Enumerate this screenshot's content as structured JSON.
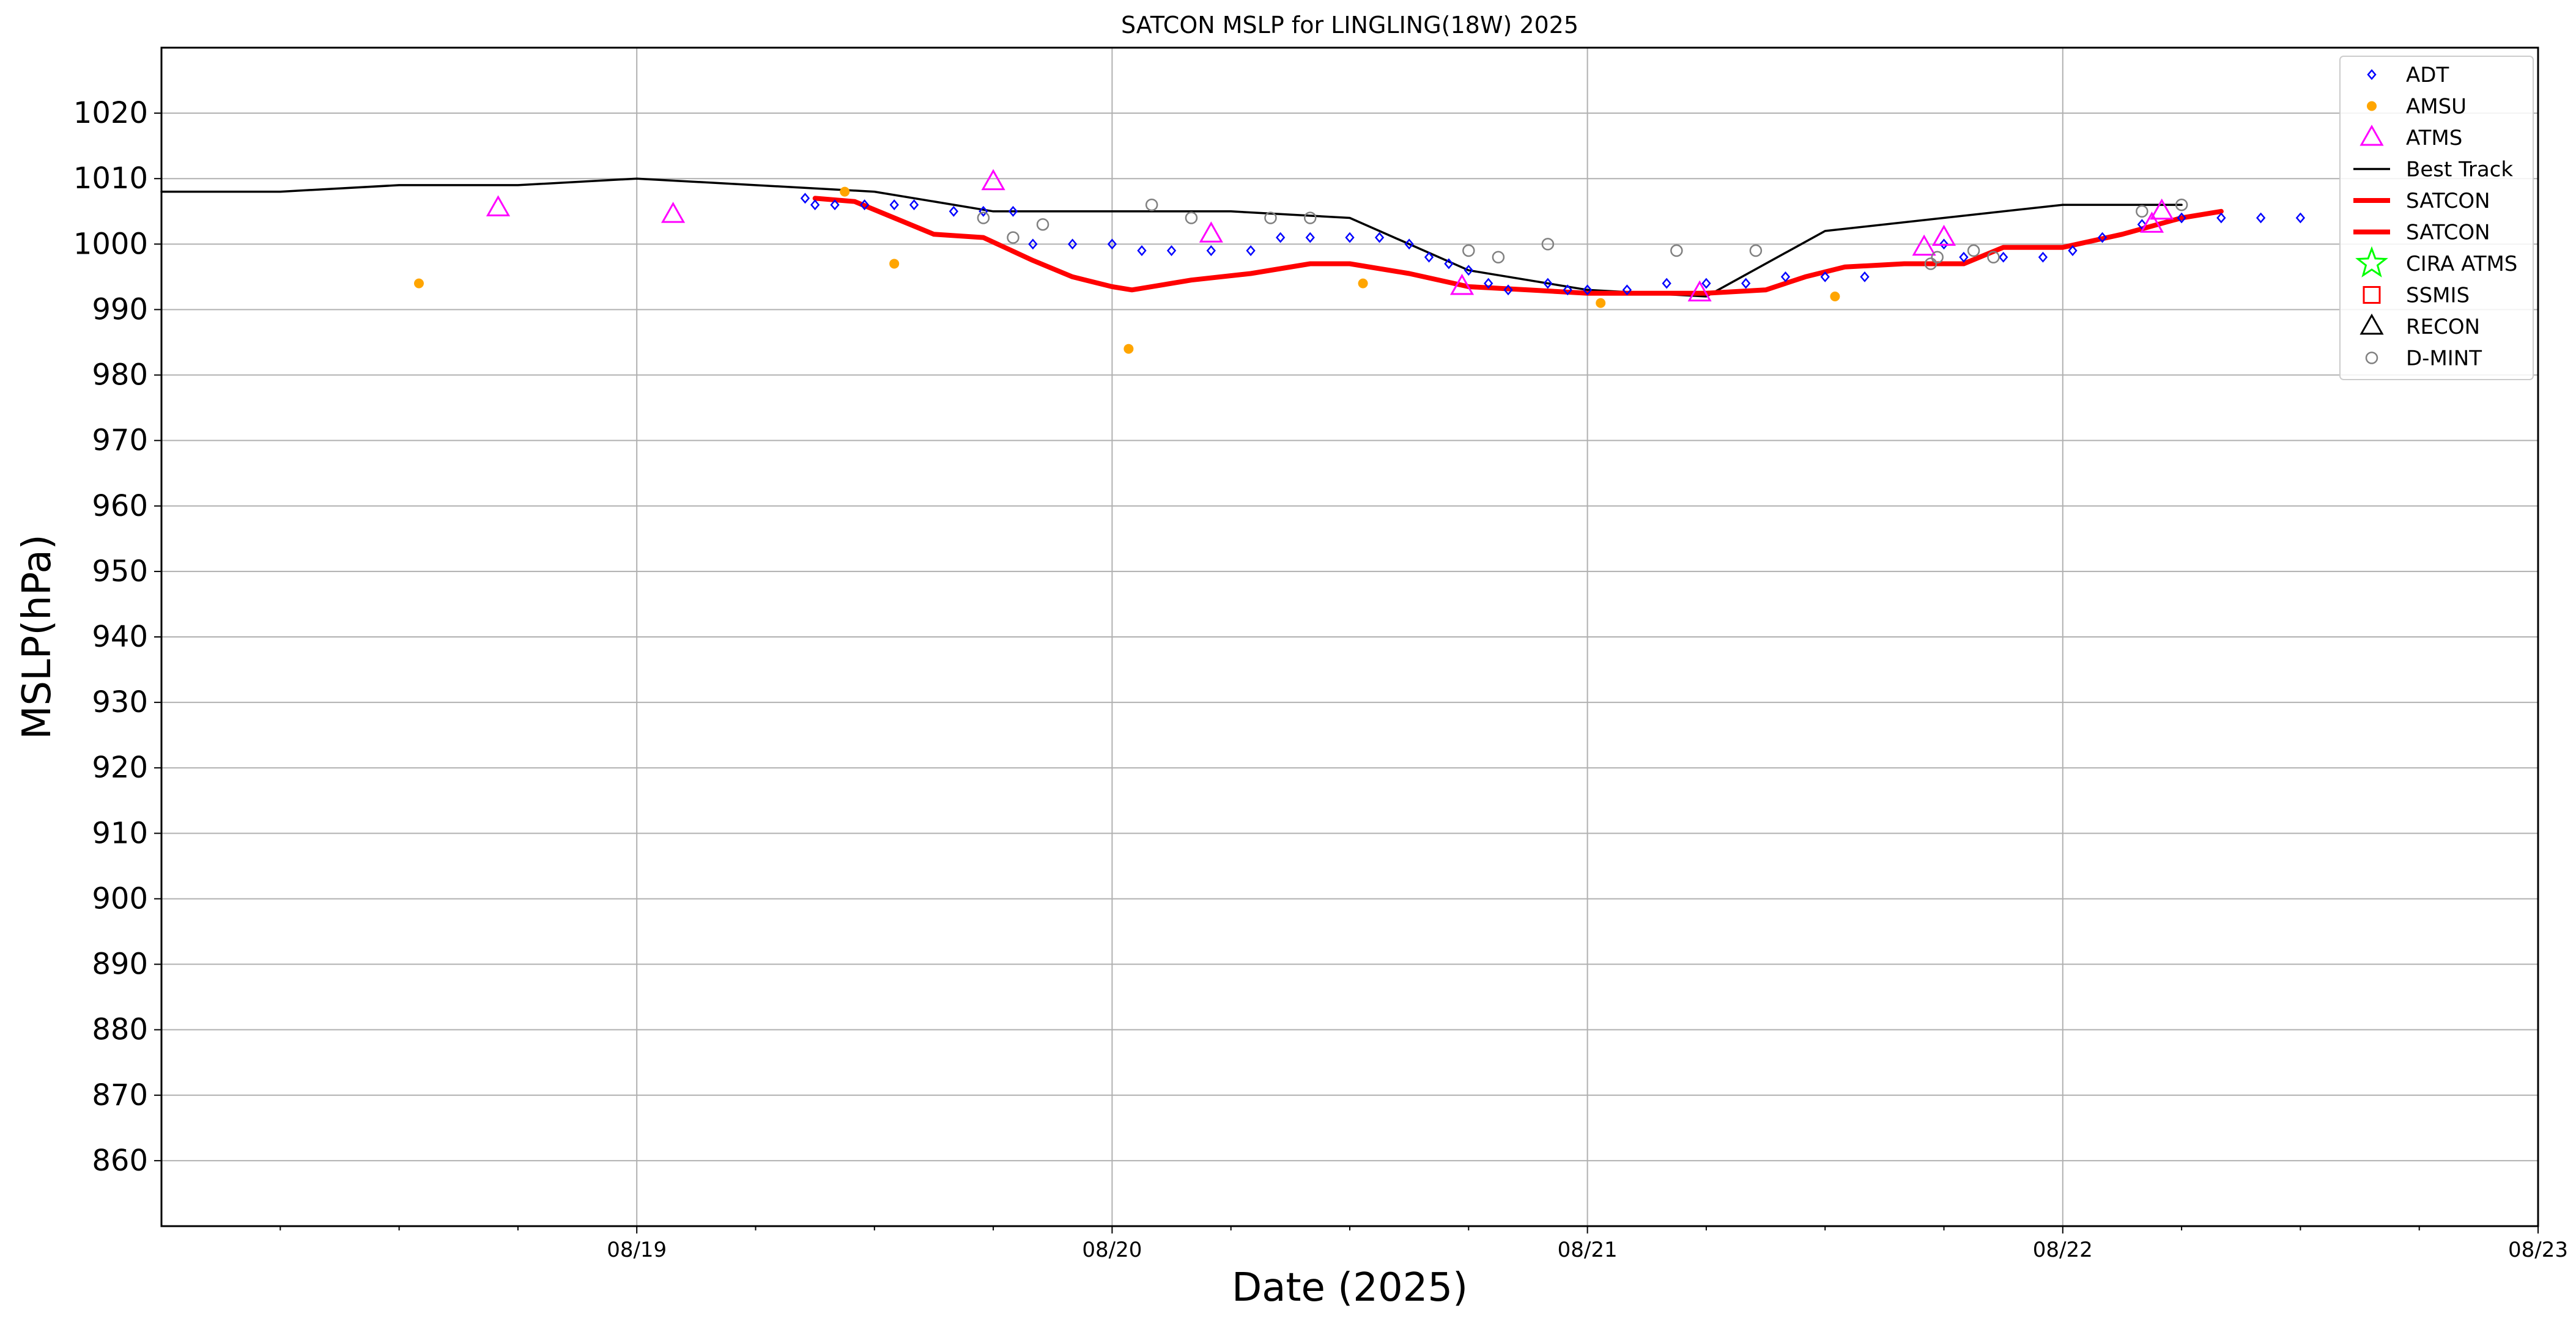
{
  "chart_data": {
    "type": "scatter",
    "title": "SATCON MSLP for LINGLING(18W) 2025",
    "xlabel": "Date (2025)",
    "ylabel": "MSLP(hPa)",
    "xlim": [
      "2025-08-18T00:00",
      "2025-08-23T00:00"
    ],
    "ylim": [
      850,
      1030
    ],
    "yticks": [
      1020,
      1010,
      1000,
      990,
      980,
      970,
      960,
      950,
      940,
      930,
      920,
      910,
      900,
      890,
      880,
      870,
      860
    ],
    "xticks": [
      {
        "t": "2025-08-19T00:00",
        "label": "08/19"
      },
      {
        "t": "2025-08-20T00:00",
        "label": "08/20"
      },
      {
        "t": "2025-08-21T00:00",
        "label": "08/21"
      },
      {
        "t": "2025-08-22T00:00",
        "label": "08/22"
      },
      {
        "t": "2025-08-23T00:00",
        "label": "08/23"
      }
    ],
    "grid": true,
    "legend_position": "top-right",
    "legend": [
      {
        "label": "ADT",
        "marker": "diamond",
        "color": "#0000ff"
      },
      {
        "label": "AMSU",
        "marker": "dot",
        "color": "#ffa500"
      },
      {
        "label": "ATMS",
        "marker": "triangle",
        "color": "#ff00ff"
      },
      {
        "label": "Best Track",
        "marker": "line",
        "color": "#000000"
      },
      {
        "label": "SATCON",
        "marker": "thickline",
        "color": "#ff0000"
      },
      {
        "label": "SATCON",
        "marker": "thickline",
        "color": "#ff0000"
      },
      {
        "label": "CIRA ATMS",
        "marker": "star",
        "color": "#00ff00"
      },
      {
        "label": "SSMIS",
        "marker": "square",
        "color": "#ff0000"
      },
      {
        "label": "RECON",
        "marker": "triangle",
        "color": "#000000"
      },
      {
        "label": "D-MINT",
        "marker": "circle",
        "color": "#808080"
      }
    ],
    "series": [
      {
        "name": "Best Track",
        "style": "line",
        "color": "#000000",
        "points": [
          [
            "2025-08-18T00:00",
            1008
          ],
          [
            "2025-08-18T06:00",
            1008
          ],
          [
            "2025-08-18T12:00",
            1009
          ],
          [
            "2025-08-18T18:00",
            1009
          ],
          [
            "2025-08-19T00:00",
            1010
          ],
          [
            "2025-08-19T12:00",
            1008
          ],
          [
            "2025-08-19T18:00",
            1005
          ],
          [
            "2025-08-20T00:00",
            1005
          ],
          [
            "2025-08-20T06:00",
            1005
          ],
          [
            "2025-08-20T12:00",
            1004
          ],
          [
            "2025-08-20T18:00",
            996
          ],
          [
            "2025-08-21T00:00",
            993
          ],
          [
            "2025-08-21T06:00",
            992
          ],
          [
            "2025-08-21T12:00",
            1002
          ],
          [
            "2025-08-22T00:00",
            1006
          ],
          [
            "2025-08-22T06:00",
            1006
          ]
        ]
      },
      {
        "name": "SATCON",
        "style": "thickline",
        "color": "#ff0000",
        "points": [
          [
            "2025-08-19T09:00",
            1007
          ],
          [
            "2025-08-19T11:00",
            1006.5
          ],
          [
            "2025-08-19T13:00",
            1004
          ],
          [
            "2025-08-19T15:00",
            1001.5
          ],
          [
            "2025-08-19T17:30",
            1001
          ],
          [
            "2025-08-19T20:00",
            997.5
          ],
          [
            "2025-08-19T22:00",
            995
          ],
          [
            "2025-08-20T00:00",
            993.5
          ],
          [
            "2025-08-20T01:00",
            993
          ],
          [
            "2025-08-20T04:00",
            994.5
          ],
          [
            "2025-08-20T07:00",
            995.5
          ],
          [
            "2025-08-20T10:00",
            997
          ],
          [
            "2025-08-20T12:00",
            997
          ],
          [
            "2025-08-20T15:00",
            995.5
          ],
          [
            "2025-08-20T18:00",
            993.5
          ],
          [
            "2025-08-20T21:00",
            993
          ],
          [
            "2025-08-21T00:00",
            992.5
          ],
          [
            "2025-08-21T03:00",
            992.5
          ],
          [
            "2025-08-21T06:00",
            992.5
          ],
          [
            "2025-08-21T09:00",
            993
          ],
          [
            "2025-08-21T11:00",
            995
          ],
          [
            "2025-08-21T13:00",
            996.5
          ],
          [
            "2025-08-21T16:00",
            997
          ],
          [
            "2025-08-21T19:00",
            997
          ],
          [
            "2025-08-21T21:00",
            999.5
          ],
          [
            "2025-08-22T00:00",
            999.5
          ],
          [
            "2025-08-22T03:00",
            1001.5
          ],
          [
            "2025-08-22T06:00",
            1004
          ],
          [
            "2025-08-22T08:00",
            1005
          ]
        ]
      },
      {
        "name": "ADT",
        "style": "diamond",
        "color": "#0000ff",
        "points": [
          [
            "2025-08-19T08:30",
            1007
          ],
          [
            "2025-08-19T09:00",
            1006
          ],
          [
            "2025-08-19T10:00",
            1006
          ],
          [
            "2025-08-19T11:30",
            1006
          ],
          [
            "2025-08-19T13:00",
            1006
          ],
          [
            "2025-08-19T14:00",
            1006
          ],
          [
            "2025-08-19T16:00",
            1005
          ],
          [
            "2025-08-19T17:30",
            1005
          ],
          [
            "2025-08-19T19:00",
            1005
          ],
          [
            "2025-08-19T20:00",
            1000
          ],
          [
            "2025-08-19T22:00",
            1000
          ],
          [
            "2025-08-20T00:00",
            1000
          ],
          [
            "2025-08-20T01:30",
            999
          ],
          [
            "2025-08-20T03:00",
            999
          ],
          [
            "2025-08-20T05:00",
            999
          ],
          [
            "2025-08-20T07:00",
            999
          ],
          [
            "2025-08-20T08:30",
            1001
          ],
          [
            "2025-08-20T10:00",
            1001
          ],
          [
            "2025-08-20T12:00",
            1001
          ],
          [
            "2025-08-20T13:30",
            1001
          ],
          [
            "2025-08-20T15:00",
            1000
          ],
          [
            "2025-08-20T16:00",
            998
          ],
          [
            "2025-08-20T17:00",
            997
          ],
          [
            "2025-08-20T18:00",
            996
          ],
          [
            "2025-08-20T19:00",
            994
          ],
          [
            "2025-08-20T20:00",
            993
          ],
          [
            "2025-08-20T22:00",
            994
          ],
          [
            "2025-08-20T23:00",
            993
          ],
          [
            "2025-08-21T00:00",
            993
          ],
          [
            "2025-08-21T02:00",
            993
          ],
          [
            "2025-08-21T04:00",
            994
          ],
          [
            "2025-08-21T06:00",
            994
          ],
          [
            "2025-08-21T08:00",
            994
          ],
          [
            "2025-08-21T10:00",
            995
          ],
          [
            "2025-08-21T12:00",
            995
          ],
          [
            "2025-08-21T14:00",
            995
          ],
          [
            "2025-08-21T18:00",
            1000
          ],
          [
            "2025-08-21T19:00",
            998
          ],
          [
            "2025-08-21T21:00",
            998
          ],
          [
            "2025-08-21T23:00",
            998
          ],
          [
            "2025-08-22T00:30",
            999
          ],
          [
            "2025-08-22T02:00",
            1001
          ],
          [
            "2025-08-22T04:00",
            1003
          ],
          [
            "2025-08-22T06:00",
            1004
          ],
          [
            "2025-08-22T08:00",
            1004
          ],
          [
            "2025-08-22T10:00",
            1004
          ],
          [
            "2025-08-22T12:00",
            1004
          ]
        ]
      },
      {
        "name": "AMSU",
        "style": "dot",
        "color": "#ffa500",
        "points": [
          [
            "2025-08-18T13:00",
            994
          ],
          [
            "2025-08-19T10:30",
            1008
          ],
          [
            "2025-08-19T13:00",
            997
          ],
          [
            "2025-08-20T00:50",
            984
          ],
          [
            "2025-08-20T12:40",
            994
          ],
          [
            "2025-08-21T00:40",
            991
          ],
          [
            "2025-08-21T12:30",
            992
          ]
        ]
      },
      {
        "name": "ATMS",
        "style": "triangle",
        "color": "#ff00ff",
        "points": [
          [
            "2025-08-18T17:00",
            1005.5
          ],
          [
            "2025-08-19T01:50",
            1004.5
          ],
          [
            "2025-08-19T18:00",
            1009.5
          ],
          [
            "2025-08-20T05:00",
            1001.5
          ],
          [
            "2025-08-20T17:40",
            993.5
          ],
          [
            "2025-08-21T05:40",
            992.5
          ],
          [
            "2025-08-21T17:00",
            999.5
          ],
          [
            "2025-08-21T18:00",
            1001
          ],
          [
            "2025-08-22T04:30",
            1003
          ],
          [
            "2025-08-22T05:00",
            1005
          ]
        ]
      },
      {
        "name": "D-MINT",
        "style": "circle",
        "color": "#808080",
        "points": [
          [
            "2025-08-19T17:30",
            1004
          ],
          [
            "2025-08-19T19:00",
            1001
          ],
          [
            "2025-08-19T20:30",
            1003
          ],
          [
            "2025-08-20T02:00",
            1006
          ],
          [
            "2025-08-20T04:00",
            1004
          ],
          [
            "2025-08-20T08:00",
            1004
          ],
          [
            "2025-08-20T10:00",
            1004
          ],
          [
            "2025-08-20T18:00",
            999
          ],
          [
            "2025-08-20T19:30",
            998
          ],
          [
            "2025-08-20T22:00",
            1000
          ],
          [
            "2025-08-21T04:30",
            999
          ],
          [
            "2025-08-21T08:30",
            999
          ],
          [
            "2025-08-21T17:20",
            997
          ],
          [
            "2025-08-21T17:40",
            998
          ],
          [
            "2025-08-21T19:30",
            999
          ],
          [
            "2025-08-21T20:30",
            998
          ],
          [
            "2025-08-22T04:00",
            1005
          ],
          [
            "2025-08-22T06:00",
            1006
          ]
        ]
      }
    ]
  }
}
